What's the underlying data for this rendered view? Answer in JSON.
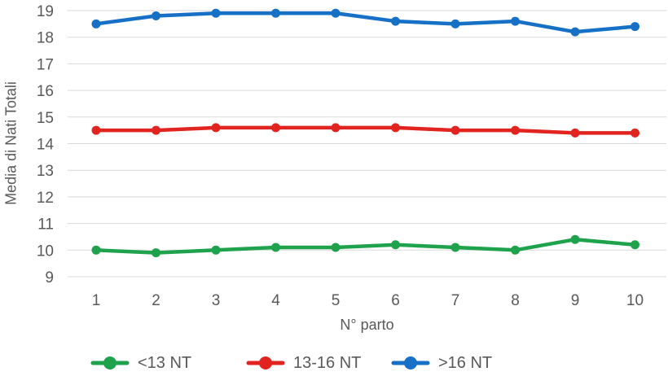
{
  "colors": {
    "background": "#FFFFFF",
    "axis_text": "#595959",
    "gridline": "#D9D9D9"
  },
  "chart_data": {
    "type": "line",
    "title": "",
    "xlabel": "N° parto",
    "ylabel": "Media di Nati Totali",
    "x": [
      1,
      2,
      3,
      4,
      5,
      6,
      7,
      8,
      9,
      10
    ],
    "ylim": [
      9,
      19
    ],
    "ytick_step": 1,
    "grid": true,
    "legend_position": "bottom",
    "series": [
      {
        "name": "<13 NT",
        "color": "#1EA24C",
        "values": [
          10.0,
          9.9,
          10.0,
          10.1,
          10.1,
          10.2,
          10.1,
          10.0,
          10.4,
          10.2
        ]
      },
      {
        "name": "13-16 NT",
        "color": "#E22420",
        "values": [
          14.5,
          14.5,
          14.6,
          14.6,
          14.6,
          14.6,
          14.5,
          14.5,
          14.4,
          14.4
        ]
      },
      {
        "name": ">16 NT",
        "color": "#1570C6",
        "values": [
          18.5,
          18.8,
          18.9,
          18.9,
          18.9,
          18.6,
          18.5,
          18.6,
          18.2,
          18.4
        ]
      }
    ]
  }
}
